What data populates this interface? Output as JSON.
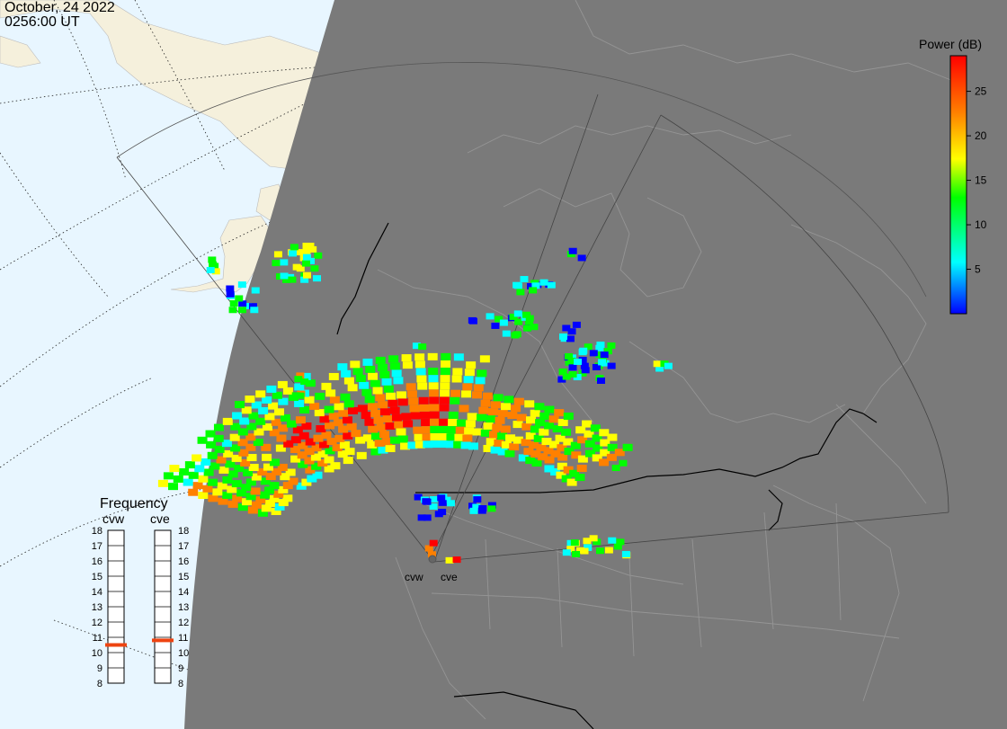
{
  "header": {
    "date": "October, 24 2022",
    "time": "0256:00 UT"
  },
  "colorbar": {
    "title": "Power (dB)",
    "ticks": [
      "5",
      "10",
      "15",
      "20",
      "25"
    ],
    "colors": [
      "#0000ff",
      "#00ffff",
      "#00ff00",
      "#ffff00",
      "#ff8000",
      "#ff0000"
    ]
  },
  "radars": [
    {
      "name": "cvw",
      "frequency_mhz": 10.5
    },
    {
      "name": "cve",
      "frequency_mhz": 10.8
    }
  ],
  "frequency_panel": {
    "title": "Frequency",
    "levels": [
      "18",
      "17",
      "16",
      "15",
      "14",
      "13",
      "12",
      "11",
      "10",
      "9",
      "8"
    ],
    "marker_color": "#ee4411"
  },
  "colors": {
    "night": "#7a7a7a",
    "day_ocean": "#e8f6ff",
    "day_land": "#f5f0dc",
    "border": "#000000"
  }
}
